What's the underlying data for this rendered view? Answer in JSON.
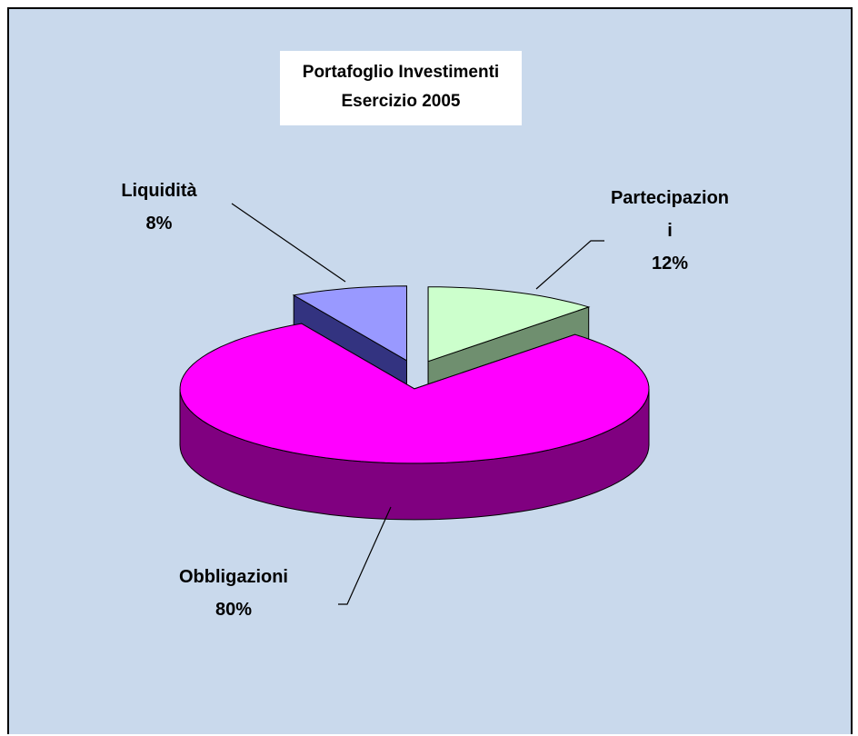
{
  "chart_data": {
    "type": "pie",
    "title": "Portafoglio Investimenti",
    "subtitle": "Esercizio 2005",
    "categories": [
      "Partecipazioni",
      "Obbligazioni",
      "Liquidità"
    ],
    "values": [
      12,
      80,
      8
    ],
    "value_labels": [
      "12%",
      "80%",
      "8%"
    ],
    "colors": [
      "#ccffcc",
      "#ff00ff",
      "#9999ff"
    ],
    "side_colors": [
      "#6f8f6f",
      "#800080",
      "#333380"
    ]
  }
}
